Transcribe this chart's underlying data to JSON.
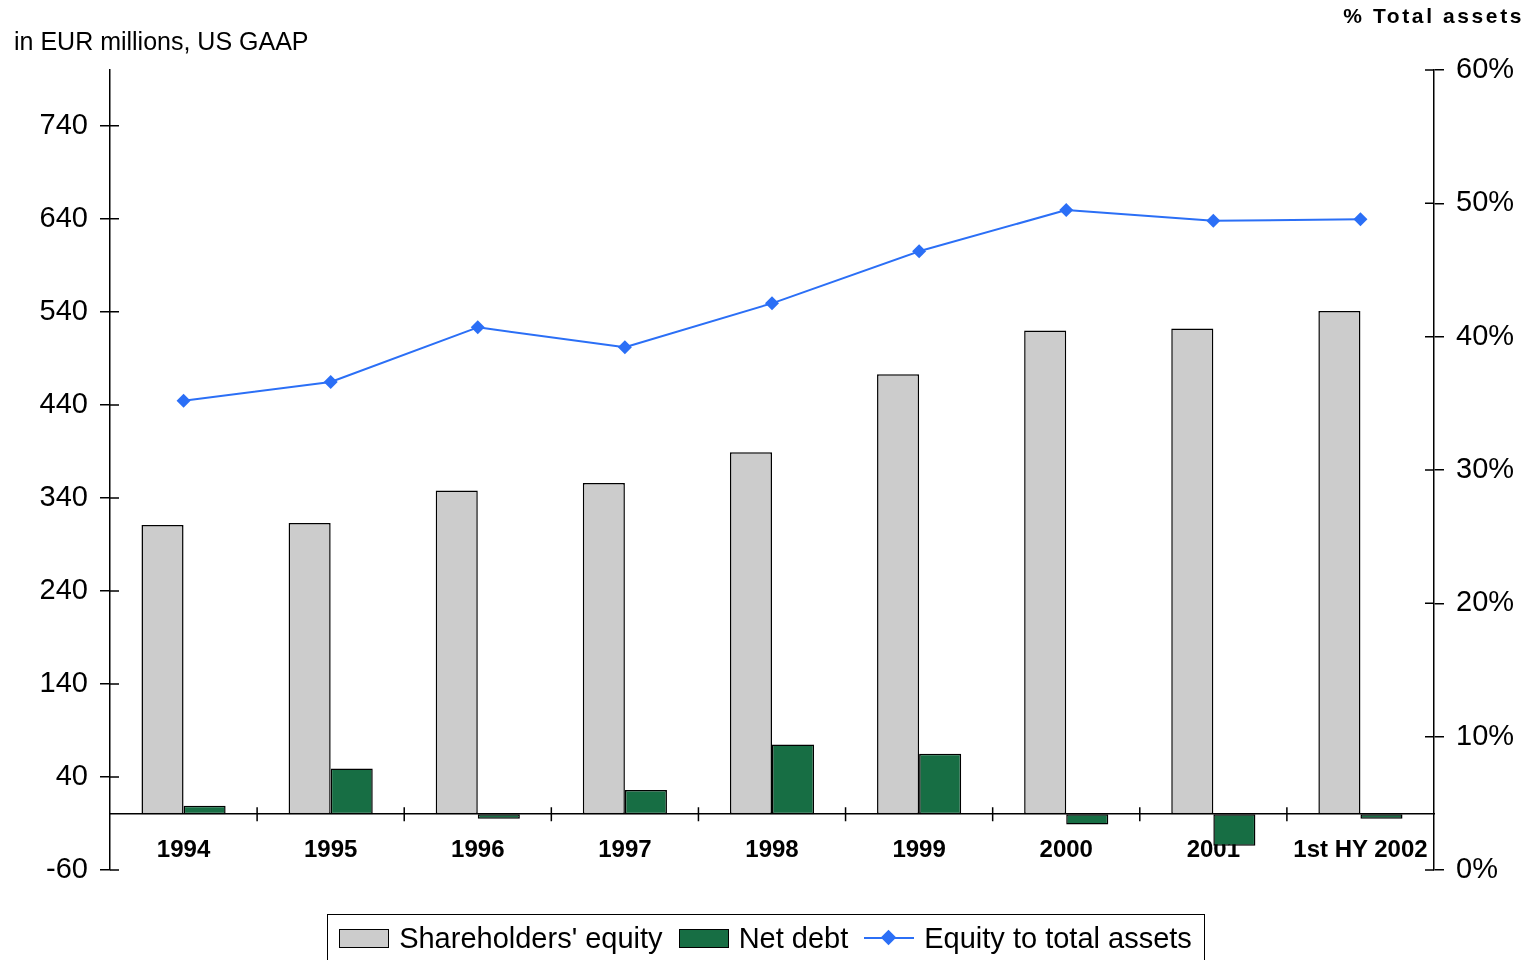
{
  "chart_data": {
    "type": "bar",
    "ylabel": "in EUR millions, US GAAP",
    "y2label": "% Total assets",
    "categories": [
      "1994",
      "1995",
      "1996",
      "1997",
      "1998",
      "1999",
      "2000",
      "2001",
      "1st HY 2002"
    ],
    "series": [
      {
        "name": "Shareholders' equity",
        "color": "#cccccc",
        "values": [
          311,
          313,
          348,
          356,
          389,
          473,
          520,
          522,
          541
        ]
      },
      {
        "name": "Net debt",
        "color": "#176e44",
        "values": [
          9,
          49,
          -5,
          26,
          75,
          65,
          -11,
          -34,
          -5
        ]
      },
      {
        "name": "Equity to total assets",
        "type": "line",
        "axis": "y2",
        "color": "#2b6ff6",
        "values": [
          35.2,
          36.6,
          40.7,
          39.2,
          42.5,
          46.4,
          49.5,
          48.7,
          48.8
        ]
      }
    ],
    "ylim": [
      -60,
      800
    ],
    "yticks": [
      -60,
      40,
      140,
      240,
      340,
      440,
      540,
      640,
      740
    ],
    "y2lim": [
      0,
      60
    ],
    "y2ticks": [
      {
        "value": 0,
        "label": "0%"
      },
      {
        "value": 10,
        "label": "10%"
      },
      {
        "value": 20,
        "label": "20%"
      },
      {
        "value": 30,
        "label": "30%"
      },
      {
        "value": 40,
        "label": "40%"
      },
      {
        "value": 50,
        "label": "50%"
      },
      {
        "value": 60,
        "label": "60%"
      }
    ],
    "legend": "bottom",
    "marker": "diamond"
  }
}
